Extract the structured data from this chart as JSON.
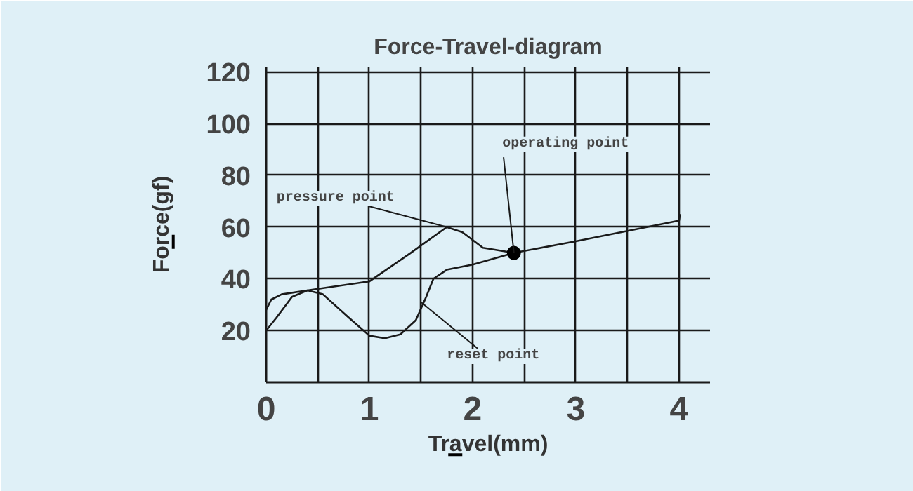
{
  "chart_data": {
    "type": "line",
    "title": "Force-Travel-diagram",
    "xlabel": "Travel(mm)",
    "ylabel": "Force(gf)",
    "xlim": [
      0,
      4.3
    ],
    "ylim": [
      0,
      122
    ],
    "xticks": [
      0,
      {
        "value": 0.5,
        "label": null
      },
      1,
      {
        "value": 1.5,
        "label": null
      },
      2,
      {
        "value": 2.5,
        "label": null
      },
      3,
      {
        "value": 3.5,
        "label": null
      },
      4
    ],
    "yticks": [
      20,
      40,
      60,
      80,
      100,
      120
    ],
    "grid": true,
    "marker": "none",
    "line_style": "solid",
    "series": [
      {
        "color": "#1a1a1a",
        "x": [
          0,
          0.05,
          0.15,
          0.4,
          1,
          1.4,
          1.75,
          1.9,
          2.1,
          2.4,
          3,
          3.5,
          4,
          4.01
        ],
        "values": [
          28,
          32,
          34,
          35.5,
          39,
          50,
          60,
          58,
          52,
          50,
          54.5,
          58.5,
          62.5,
          65
        ]
      },
      {
        "color": "#1a1a1a",
        "x": [
          0,
          0.1,
          0.25,
          0.4,
          0.55,
          0.8,
          1,
          1.15,
          1.3,
          1.45,
          1.55,
          1.62,
          1.75,
          2,
          2.4
        ],
        "values": [
          20,
          25,
          33,
          35.5,
          34,
          25,
          18,
          17,
          18.5,
          24,
          33,
          40,
          43.5,
          45.5,
          50
        ]
      },
      {
        "type": "scatter",
        "marker": "circle",
        "color": "#000000",
        "x": [
          2.4
        ],
        "values": [
          50
        ]
      }
    ],
    "annotations": [
      {
        "text": "pressure point",
        "x": 1.75,
        "y": 60
      },
      {
        "text": "operating point",
        "x": 2.4,
        "y": 50
      },
      {
        "text": "reset point",
        "x": 1.5,
        "y": 31
      }
    ]
  }
}
